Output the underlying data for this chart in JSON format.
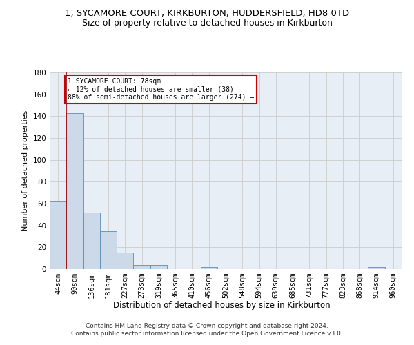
{
  "title": "1, SYCAMORE COURT, KIRKBURTON, HUDDERSFIELD, HD8 0TD",
  "subtitle": "Size of property relative to detached houses in Kirkburton",
  "xlabel": "Distribution of detached houses by size in Kirkburton",
  "ylabel": "Number of detached properties",
  "bar_color": "#ccd9e8",
  "bar_edge_color": "#5b8db8",
  "categories": [
    "44sqm",
    "90sqm",
    "136sqm",
    "181sqm",
    "227sqm",
    "273sqm",
    "319sqm",
    "365sqm",
    "410sqm",
    "456sqm",
    "502sqm",
    "548sqm",
    "594sqm",
    "639sqm",
    "685sqm",
    "731sqm",
    "777sqm",
    "823sqm",
    "868sqm",
    "914sqm",
    "960sqm"
  ],
  "values": [
    62,
    143,
    52,
    35,
    15,
    4,
    4,
    0,
    0,
    2,
    0,
    0,
    0,
    0,
    0,
    0,
    0,
    0,
    0,
    2,
    0
  ],
  "ylim": [
    0,
    180
  ],
  "yticks": [
    0,
    20,
    40,
    60,
    80,
    100,
    120,
    140,
    160,
    180
  ],
  "annotation_text": "1 SYCAMORE COURT: 78sqm\n← 12% of detached houses are smaller (38)\n88% of semi-detached houses are larger (274) →",
  "annotation_box_color": "#ffffff",
  "annotation_box_edge_color": "#cc0000",
  "property_line_color": "#aa0000",
  "grid_color": "#cccccc",
  "bg_color": "#e8eef5",
  "footer_text": "Contains HM Land Registry data © Crown copyright and database right 2024.\nContains public sector information licensed under the Open Government Licence v3.0.",
  "title_fontsize": 9.5,
  "subtitle_fontsize": 9,
  "xlabel_fontsize": 8.5,
  "ylabel_fontsize": 8,
  "tick_fontsize": 7.5,
  "footer_fontsize": 6.5
}
